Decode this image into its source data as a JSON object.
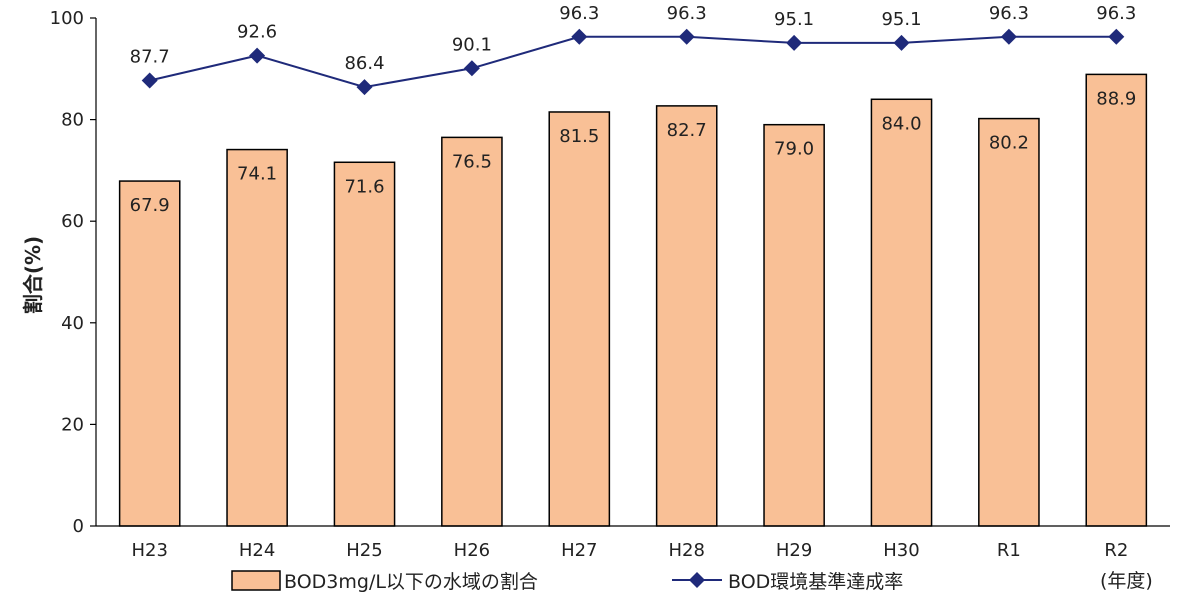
{
  "chart_data": {
    "type": "bar",
    "categories": [
      "H23",
      "H24",
      "H25",
      "H26",
      "H27",
      "H28",
      "H29",
      "H30",
      "R1",
      "R2"
    ],
    "series": [
      {
        "name": "BOD3mg/L以下の水域の割合",
        "kind": "bar",
        "color": "#F9C096",
        "values": [
          67.9,
          74.1,
          71.6,
          76.5,
          81.5,
          82.7,
          79.0,
          84.0,
          80.2,
          88.9
        ],
        "labels": [
          "67.9",
          "74.1",
          "71.6",
          "76.5",
          "81.5",
          "82.7",
          "79.0",
          "84.0",
          "80.2",
          "88.9"
        ]
      },
      {
        "name": "BOD環境基準達成率",
        "kind": "line",
        "color": "#1F2A7A",
        "marker": "diamond",
        "values": [
          87.7,
          92.6,
          86.4,
          90.1,
          96.3,
          96.3,
          95.1,
          95.1,
          96.3,
          96.3
        ],
        "labels": [
          "87.7",
          "92.6",
          "86.4",
          "90.1",
          "96.3",
          "96.3",
          "95.1",
          "95.1",
          "96.3",
          "96.3"
        ]
      }
    ],
    "ylabel": "割合(%)",
    "xlabel": "(年度)",
    "ylim": [
      0,
      100
    ],
    "yticks": [
      "0",
      "20",
      "40",
      "60",
      "80",
      "100"
    ],
    "grid": false,
    "legend_position": "bottom"
  }
}
